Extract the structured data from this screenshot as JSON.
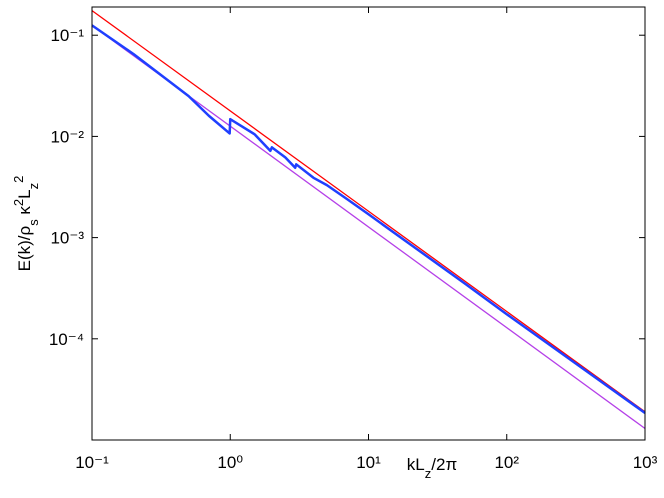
{
  "chart_data": {
    "type": "line",
    "xlog": true,
    "ylog": true,
    "grid": false,
    "xlim": [
      0.1,
      1000
    ],
    "ylim": [
      1e-05,
      0.19
    ],
    "xticks": [
      {
        "value": 0.1,
        "label": "10⁻¹"
      },
      {
        "value": 1,
        "label": "10⁰"
      },
      {
        "value": 10,
        "label": "10¹"
      },
      {
        "value": 100,
        "label": "10²"
      },
      {
        "value": 1000,
        "label": "10³"
      }
    ],
    "yticks": [
      {
        "value": 0.0001,
        "label": "10⁻⁴"
      },
      {
        "value": 0.001,
        "label": "10⁻³"
      },
      {
        "value": 0.01,
        "label": "10⁻²"
      },
      {
        "value": 0.1,
        "label": "10⁻¹"
      }
    ],
    "xlabel": [
      {
        "text": "kL"
      },
      {
        "text": "z",
        "shift": "sub"
      },
      {
        "text": "/2π"
      }
    ],
    "ylabel": [
      {
        "text": "E(k)/ρ"
      },
      {
        "text": "s",
        "shift": "sub"
      },
      {
        "text": " κ"
      },
      {
        "text": "2",
        "shift": "super"
      },
      {
        "text": "L"
      },
      {
        "text": "z",
        "shift": "sub"
      },
      {
        "text": "2",
        "shift": "super"
      }
    ],
    "series": [
      {
        "color": "#ff0000",
        "width": 1.3,
        "x": [
          0.1,
          1000
        ],
        "values": [
          0.175,
          1.9e-05
        ]
      },
      {
        "color": "#b540e8",
        "width": 1.3,
        "x": [
          0.1,
          1000
        ],
        "values": [
          0.125,
          1.3e-05
        ]
      },
      {
        "color": "#1f3fff",
        "width": 2.5,
        "x": [
          0.1,
          0.2,
          0.5,
          0.7,
          0.99,
          1,
          1.5,
          1.95,
          2,
          2.5,
          2.95,
          3,
          4,
          5,
          7,
          10,
          20,
          50,
          100,
          1000
        ],
        "values": [
          0.125,
          0.065,
          0.025,
          0.016,
          0.0107,
          0.0148,
          0.0105,
          0.0072,
          0.0078,
          0.0062,
          0.0049,
          0.0053,
          0.0039,
          0.0033,
          0.0024,
          0.0017,
          0.00086,
          0.00035,
          0.000175,
          1.85e-05
        ]
      }
    ]
  }
}
